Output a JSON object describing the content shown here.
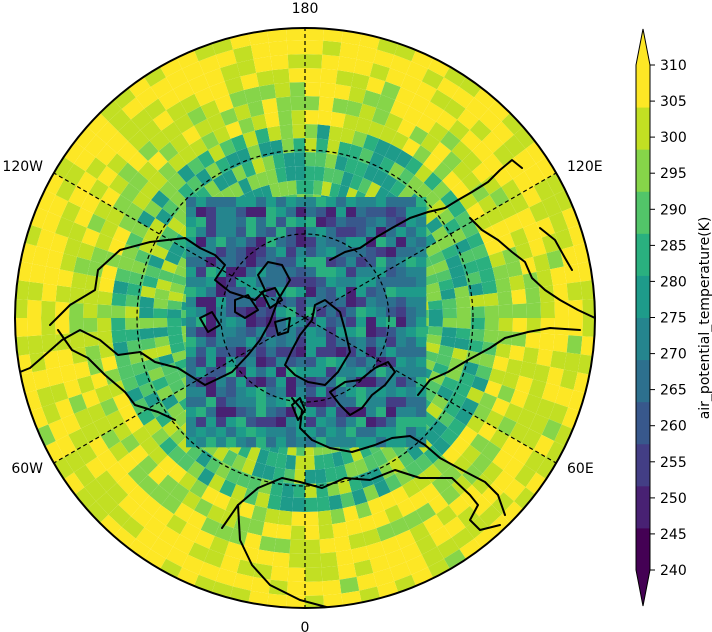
{
  "chart_data": {
    "type": "heatmap",
    "projection": "north-polar-stereographic",
    "variable": "air_potential_temperature",
    "units": "K",
    "colorbar_label": "air_potential_temperature(K)",
    "colorbar_levels": [
      240,
      245,
      250,
      255,
      260,
      265,
      270,
      275,
      280,
      285,
      290,
      295,
      300,
      305,
      310
    ],
    "colorbar_tick_labels": [
      "240",
      "245",
      "250",
      "255",
      "260",
      "265",
      "270",
      "275",
      "280",
      "285",
      "290",
      "295",
      "300",
      "305",
      "310"
    ],
    "colorbar_extend": "both",
    "colormap": [
      "#440154",
      "#482173",
      "#433e85",
      "#38588c",
      "#2d708e",
      "#25858e",
      "#1e9b8a",
      "#2ab07f",
      "#52c569",
      "#86d549",
      "#c2df23",
      "#fde725"
    ],
    "longitude_labels": [
      "180",
      "120E",
      "60E",
      "0",
      "60W",
      "120W"
    ],
    "gridlines": "dashed",
    "coastlines": true,
    "field_description": {
      "inner_block_range_K": [
        245,
        285
      ],
      "middle_ring_range_K": [
        275,
        305
      ],
      "outer_ring_range_K": [
        295,
        312
      ]
    }
  }
}
